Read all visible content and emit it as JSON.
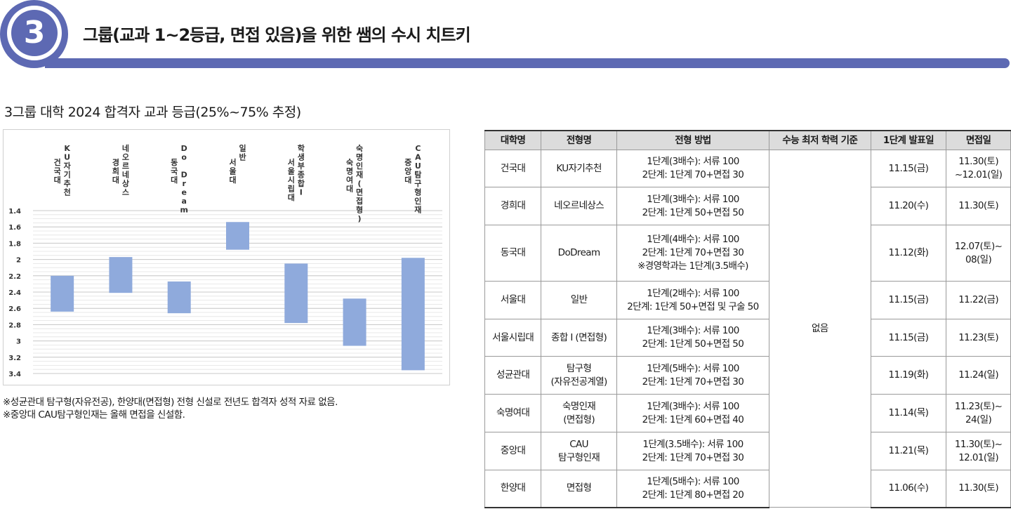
{
  "header": {
    "badge_number": "3",
    "title": "그룹(교과 1~2등급, 면접 있음)을 위한 쌤의 수시 치트키",
    "accent_color": "#5d69b3"
  },
  "chart_section": {
    "title": "3그룹 대학 2024 합격자 교과 등급(25%~75% 추정)"
  },
  "chart_data": {
    "type": "bar",
    "subtype": "floating-range",
    "title": "3그룹 대학 2024 합격자 교과 등급(25%~75% 추정)",
    "categories": [
      [
        "건국대",
        "KU자기추천"
      ],
      [
        "경희대",
        "네오르네상스"
      ],
      [
        "동국대",
        "Do Dream"
      ],
      [
        "서울대",
        "일반"
      ],
      [
        "서울시립대",
        "학생부종합Ⅰ"
      ],
      [
        "숙명여대",
        "숙명인재(면접형)"
      ],
      [
        "중앙대",
        "CAU탐구형인재"
      ]
    ],
    "series": [
      {
        "name": "25%",
        "values": [
          2.2,
          1.97,
          2.27,
          1.54,
          2.05,
          2.48,
          1.98
        ]
      },
      {
        "name": "75%",
        "values": [
          2.64,
          2.41,
          2.66,
          1.88,
          2.78,
          3.06,
          3.36
        ]
      }
    ],
    "yticks": [
      "1.4",
      "1.6",
      "1.8",
      "2",
      "2.2",
      "2.4",
      "2.6",
      "2.8",
      "3",
      "3.2",
      "3.4"
    ],
    "ylim": [
      1.4,
      3.4
    ],
    "y_reversed": true,
    "bar_color": "#8faadc",
    "grid": true
  },
  "notes": [
    "※성균관대 탐구형(자유전공), 한양대(면접형) 전형 신설로 전년도 합격자 성적 자료 없음.",
    "※중앙대 CAU탐구형인재는 올해 면접을 신설함."
  ],
  "table": {
    "headers": [
      "대학명",
      "전형명",
      "전형 방법",
      "수능 최저 학력 기준",
      "1단계 발표일",
      "면접일"
    ],
    "csat_minimum": "없음",
    "rows": [
      {
        "univ": "건국대",
        "track": "KU자기추천",
        "method": "1단계(3배수): 서류 100\n2단계: 1단계 70+면접 30",
        "stage1": "11.15(금)",
        "interview": "11.30(토)\n~12.01(일)"
      },
      {
        "univ": "경희대",
        "track": "네오르네상스",
        "method": "1단계(3배수): 서류 100\n2단계: 1단계 50+면접 50",
        "stage1": "11.20(수)",
        "interview": "11.30(토)"
      },
      {
        "univ": "동국대",
        "track": "DoDream",
        "method": "1단계(4배수): 서류 100\n2단계: 1단계 70+면접 30\n※경영학과는 1단계(3.5배수)",
        "stage1": "11.12(화)",
        "interview": "12.07(토)~\n08(일)"
      },
      {
        "univ": "서울대",
        "track": "일반",
        "method": "1단계(2배수): 서류 100\n2단계: 1단계 50+면접 및 구술 50",
        "stage1": "11.15(금)",
        "interview": "11.22(금)"
      },
      {
        "univ": "서울시립대",
        "track": "종합 Ⅰ (면접형)",
        "method": "1단계(3배수): 서류 100\n2단계: 1단계 50+면접 50",
        "stage1": "11.15(금)",
        "interview": "11.23(토)"
      },
      {
        "univ": "성균관대",
        "track": "탐구형\n(자유전공계열)",
        "method": "1단계(5배수): 서류 100\n2단계: 1단계 70+면접 30",
        "stage1": "11.19(화)",
        "interview": "11.24(일)"
      },
      {
        "univ": "숙명여대",
        "track": "숙명인재\n(면접형)",
        "method": "1단계(3배수): 서류 100\n2단계: 1단계 60+면접 40",
        "stage1": "11.14(목)",
        "interview": "11.23(토)~\n24(일)"
      },
      {
        "univ": "중앙대",
        "track": "CAU\n탐구형인재",
        "method": "1단계(3.5배수): 서류 100\n2단계: 1단계 70+면접 30",
        "stage1": "11.21(목)",
        "interview": "11.30(토)~\n12.01(일)"
      },
      {
        "univ": "한양대",
        "track": "면접형",
        "method": "1단계(5배수): 서류 100\n2단계: 1단계 80+면접 20",
        "stage1": "11.06(수)",
        "interview": "11.30(토)"
      }
    ]
  }
}
